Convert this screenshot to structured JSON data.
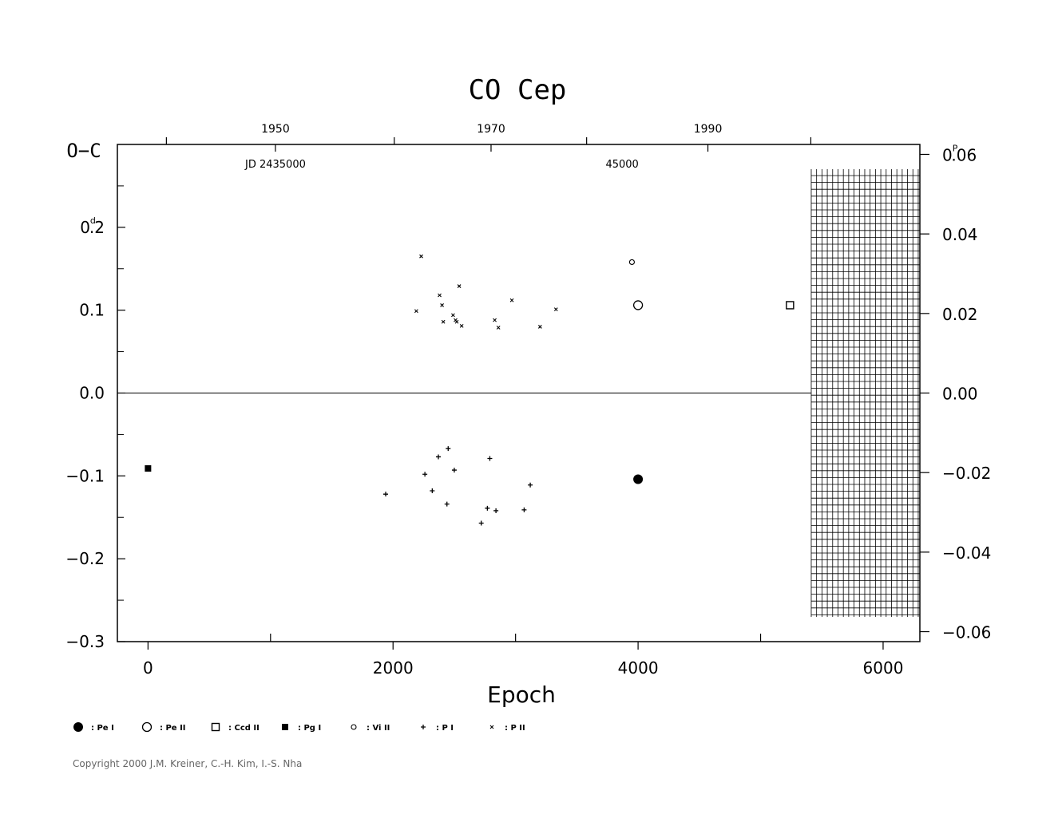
{
  "chart_data": {
    "type": "scatter",
    "title": "CO Cep",
    "xlabel": "Epoch",
    "ylabel": "O−C",
    "xlim": [
      -250,
      6300
    ],
    "ylim": [
      -0.3,
      0.3
    ],
    "grid": false,
    "x_ticks": [
      {
        "value": 0,
        "label": "0"
      },
      {
        "value": 2000,
        "label": "2000"
      },
      {
        "value": 4000,
        "label": "4000"
      },
      {
        "value": 6000,
        "label": "6000"
      }
    ],
    "x_minor_ticks": [
      1000,
      3000,
      5000
    ],
    "y_ticks": [
      {
        "value": 0.2,
        "label": "0.2",
        "unit": "d"
      },
      {
        "value": 0.1,
        "label": "0.1"
      },
      {
        "value": 0.0,
        "label": "0.0"
      },
      {
        "value": -0.1,
        "label": "−0.1"
      },
      {
        "value": -0.2,
        "label": "−0.2"
      },
      {
        "value": -0.3,
        "label": "−0.3"
      }
    ],
    "y_minor_ticks": [
      0.25,
      0.15,
      0.05,
      -0.05,
      -0.15,
      -0.25
    ],
    "phase_ticks": [
      {
        "value": 0.06,
        "label": "0.06",
        "unit": "P"
      },
      {
        "value": 0.04,
        "label": "0.04"
      },
      {
        "value": 0.02,
        "label": "0.02"
      },
      {
        "value": 0.0,
        "label": "0.00"
      },
      {
        "value": -0.02,
        "label": "−0.02"
      },
      {
        "value": -0.04,
        "label": "−0.04"
      },
      {
        "value": -0.06,
        "label": "−0.06"
      }
    ],
    "phase_scale_days_per_unit_phase": 4.8,
    "year_ticks": [
      {
        "label": "1950",
        "epoch": 1040
      },
      {
        "label": "1970",
        "epoch": 2800
      },
      {
        "label": "1990",
        "epoch": 4570
      }
    ],
    "year_minor_epochs": [
      150,
      2010,
      3580,
      5410
    ],
    "jd_labels": [
      {
        "text": "JD 2435000",
        "epoch": 1040
      },
      {
        "text": "45000",
        "epoch": 3870
      }
    ],
    "future_hatch_from_epoch": 5420,
    "series": [
      {
        "name": "Pe I",
        "symbol": "filled-circle-large",
        "points": [
          [
            4000,
            -0.104
          ]
        ]
      },
      {
        "name": "Pe II",
        "symbol": "open-circle-large",
        "points": [
          [
            4000,
            0.106
          ]
        ]
      },
      {
        "name": "Ccd II",
        "symbol": "open-square",
        "points": [
          [
            5240,
            0.106
          ]
        ]
      },
      {
        "name": "Pg I",
        "symbol": "filled-square",
        "points": [
          [
            0,
            -0.091
          ]
        ]
      },
      {
        "name": "Vi II",
        "symbol": "open-circle-small",
        "points": [
          [
            3950,
            0.158
          ]
        ]
      },
      {
        "name": "P I",
        "symbol": "plus",
        "points": [
          [
            1940,
            -0.122
          ],
          [
            2260,
            -0.098
          ],
          [
            2320,
            -0.118
          ],
          [
            2370,
            -0.077
          ],
          [
            2440,
            -0.134
          ],
          [
            2450,
            -0.067
          ],
          [
            2500,
            -0.093
          ],
          [
            2720,
            -0.157
          ],
          [
            2770,
            -0.139
          ],
          [
            2790,
            -0.079
          ],
          [
            2840,
            -0.142
          ],
          [
            3070,
            -0.141
          ],
          [
            3120,
            -0.111
          ]
        ]
      },
      {
        "name": "P II",
        "symbol": "cross",
        "points": [
          [
            2190,
            0.099
          ],
          [
            2230,
            0.165
          ],
          [
            2380,
            0.118
          ],
          [
            2400,
            0.106
          ],
          [
            2410,
            0.086
          ],
          [
            2490,
            0.094
          ],
          [
            2510,
            0.088
          ],
          [
            2520,
            0.086
          ],
          [
            2540,
            0.129
          ],
          [
            2560,
            0.081
          ],
          [
            2830,
            0.088
          ],
          [
            2860,
            0.079
          ],
          [
            2970,
            0.112
          ],
          [
            3200,
            0.08
          ],
          [
            3330,
            0.101
          ]
        ]
      }
    ],
    "legend_placement": "bottom-left"
  },
  "legend": [
    {
      "symbol": "filled-circle-large",
      "label": ": Pe I"
    },
    {
      "symbol": "open-circle-large",
      "label": ": Pe II"
    },
    {
      "symbol": "open-square",
      "label": ": Ccd II"
    },
    {
      "symbol": "filled-square",
      "label": ": Pg I"
    },
    {
      "symbol": "open-circle-small",
      "label": ": Vi II"
    },
    {
      "symbol": "plus",
      "label": ": P I"
    },
    {
      "symbol": "cross",
      "label": ": P II"
    }
  ],
  "copyright": "Copyright 2000 J.M. Kreiner, C.-H. Kim, I.-S. Nha"
}
